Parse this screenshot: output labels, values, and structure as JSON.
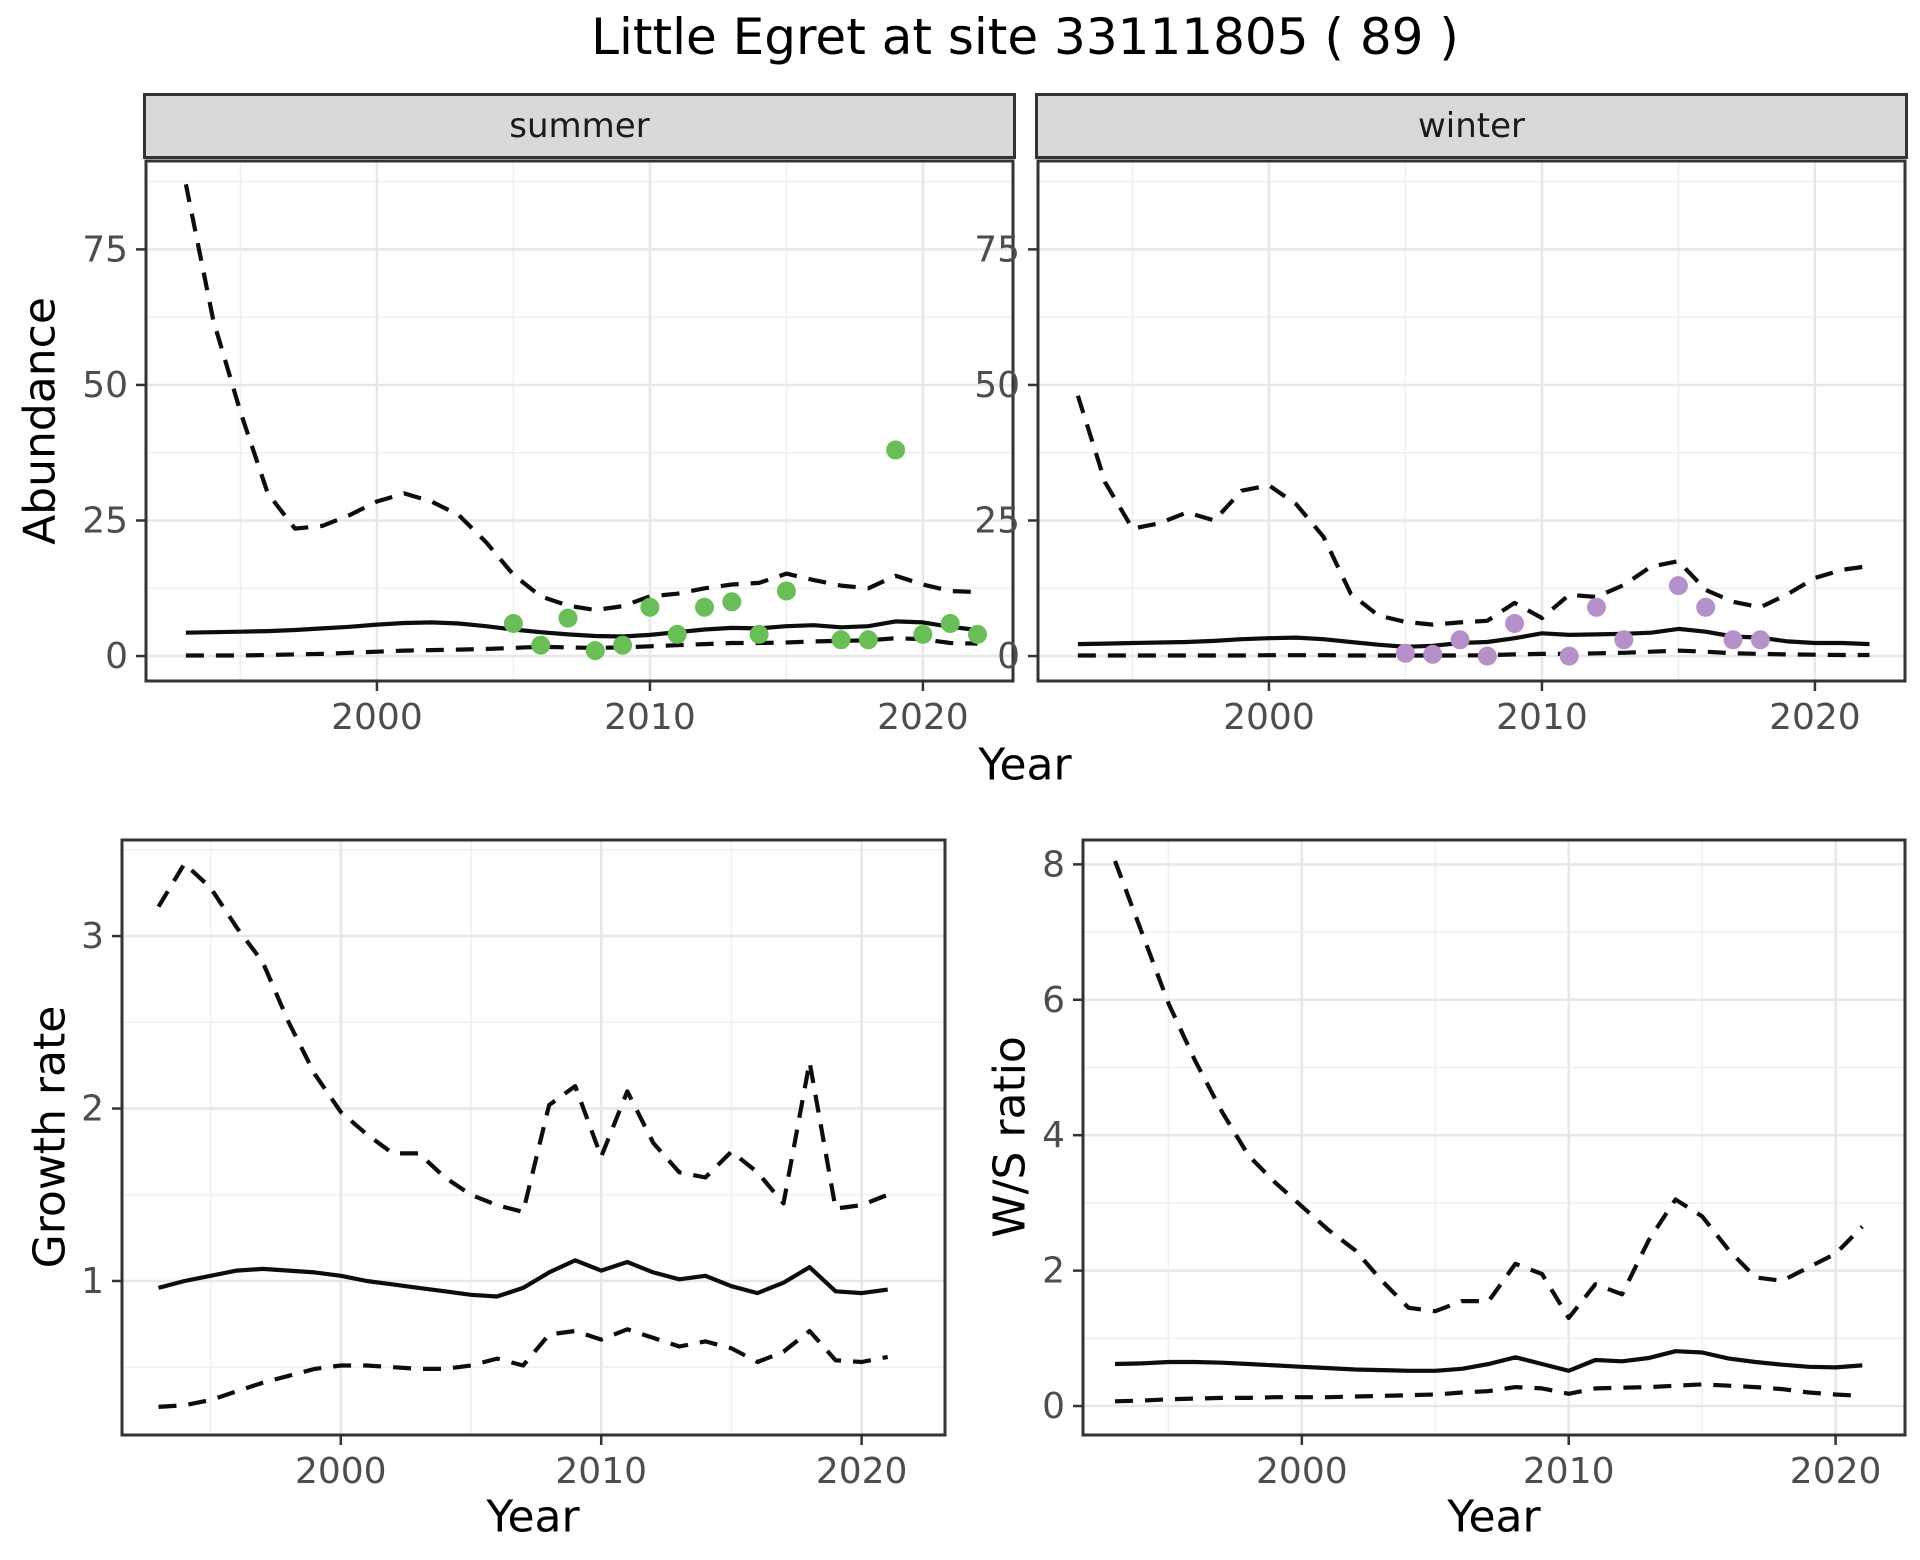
{
  "title": "Little Egret at site 33111805 ( 89 )",
  "facets": [
    "summer",
    "winter"
  ],
  "axis_titles": {
    "abundance": "Abundance",
    "growth_rate": "Growth rate",
    "ws_ratio": "W/S ratio",
    "year": "Year"
  },
  "colors": {
    "summer_point": "#6abe58",
    "winter_point": "#b690c9",
    "line": "#0d0d0d",
    "grid_major": "#e7e7e7",
    "grid_minor": "#f0f0f0",
    "panel_border": "#333333",
    "tick_text": "#4d4d4d",
    "strip_bg": "#d9d9d9"
  },
  "chart_data": [
    {
      "id": "abundance_summer",
      "type": "line",
      "facet": "summer",
      "xlabel": "Year",
      "ylabel": "Abundance",
      "xlim": [
        1991.54,
        2023.3
      ],
      "ylim": [
        -4.6,
        91.3
      ],
      "x_ticks": [
        2000,
        2010,
        2020
      ],
      "y_ticks": [
        0,
        25,
        50,
        75
      ],
      "grid": true,
      "legend": "none",
      "x": [
        1993,
        1994,
        1995,
        1996,
        1997,
        1998,
        1999,
        2000,
        2001,
        2002,
        2003,
        2004,
        2005,
        2006,
        2007,
        2008,
        2009,
        2010,
        2011,
        2012,
        2013,
        2014,
        2015,
        2016,
        2017,
        2018,
        2019,
        2020,
        2021,
        2022
      ],
      "series": [
        {
          "name": "upper_ci",
          "style": "dashed",
          "values": [
            87,
            62,
            45,
            30,
            23.5,
            24,
            26,
            28.5,
            30,
            28.5,
            26,
            21,
            15,
            11,
            9.3,
            8.5,
            9.2,
            11,
            11.5,
            12.5,
            13.2,
            13.5,
            15.2,
            14,
            13,
            12.5,
            14.8,
            13.2,
            12,
            11.8
          ]
        },
        {
          "name": "mean",
          "style": "solid",
          "values": [
            4.3,
            4.4,
            4.5,
            4.6,
            4.8,
            5.1,
            5.4,
            5.8,
            6.1,
            6.2,
            6.0,
            5.5,
            4.9,
            4.4,
            4.0,
            3.7,
            3.6,
            3.9,
            4.4,
            4.9,
            5.2,
            5.1,
            5.5,
            5.7,
            5.3,
            5.5,
            6.4,
            6.2,
            5.4,
            4.8
          ]
        },
        {
          "name": "lower_ci",
          "style": "dashed",
          "values": [
            0.1,
            0.1,
            0.1,
            0.2,
            0.3,
            0.4,
            0.6,
            0.8,
            1.0,
            1.1,
            1.2,
            1.3,
            1.5,
            1.7,
            1.6,
            1.5,
            1.6,
            1.8,
            2.0,
            2.2,
            2.4,
            2.4,
            2.5,
            2.7,
            2.8,
            2.9,
            3.3,
            3.1,
            2.4,
            2.3
          ]
        }
      ],
      "points": {
        "name": "observed_counts",
        "color_key": "summer_point",
        "x": [
          2005,
          2006,
          2007,
          2008,
          2009,
          2010,
          2011,
          2012,
          2013,
          2014,
          2015,
          2017,
          2018,
          2019,
          2020,
          2021,
          2022
        ],
        "y": [
          6,
          2,
          7,
          1,
          2,
          9,
          4,
          9,
          10,
          4,
          12,
          3,
          3,
          38,
          4,
          6,
          4
        ]
      }
    },
    {
      "id": "abundance_winter",
      "type": "line",
      "facet": "winter",
      "xlabel": "Year",
      "ylabel": "Abundance",
      "xlim": [
        1991.54,
        2023.3
      ],
      "ylim": [
        -4.6,
        91.3
      ],
      "x_ticks": [
        2000,
        2010,
        2020
      ],
      "y_ticks": [
        0,
        25,
        50,
        75
      ],
      "grid": true,
      "legend": "none",
      "x": [
        1993,
        1994,
        1995,
        1996,
        1997,
        1998,
        1999,
        2000,
        2001,
        2002,
        2003,
        2004,
        2005,
        2006,
        2007,
        2008,
        2009,
        2010,
        2011,
        2012,
        2013,
        2014,
        2015,
        2016,
        2017,
        2018,
        2019,
        2020,
        2021,
        2022
      ],
      "series": [
        {
          "name": "upper_ci",
          "style": "dashed",
          "values": [
            48,
            32,
            23.5,
            24.5,
            26.5,
            25,
            30.5,
            31.5,
            28,
            22,
            11.5,
            7.5,
            6.3,
            5.8,
            6.2,
            6.5,
            9.8,
            7,
            11.3,
            10.9,
            13.1,
            16.5,
            17.5,
            12.2,
            10,
            9,
            11.4,
            14.4,
            15.9,
            16.6
          ]
        },
        {
          "name": "mean",
          "style": "solid",
          "values": [
            2.2,
            2.3,
            2.4,
            2.5,
            2.6,
            2.8,
            3.1,
            3.3,
            3.4,
            3.1,
            2.6,
            2.1,
            1.7,
            1.9,
            2.4,
            2.6,
            3.3,
            4.2,
            3.9,
            4.0,
            4.1,
            4.3,
            5.0,
            4.5,
            3.6,
            3.4,
            2.7,
            2.4,
            2.4,
            2.2
          ]
        },
        {
          "name": "lower_ci",
          "style": "dashed",
          "values": [
            0.1,
            0.1,
            0.1,
            0.1,
            0.1,
            0.1,
            0.1,
            0.15,
            0.15,
            0.15,
            0.1,
            0.1,
            0.1,
            0.1,
            0.1,
            0.15,
            0.3,
            0.4,
            0.4,
            0.5,
            0.6,
            0.8,
            1.0,
            0.8,
            0.5,
            0.4,
            0.3,
            0.25,
            0.2,
            0.2
          ]
        }
      ],
      "points": {
        "name": "observed_counts",
        "color_key": "winter_point",
        "x": [
          2005,
          2006,
          2007,
          2008,
          2009,
          2011,
          2012,
          2013,
          2015,
          2016,
          2017,
          2018
        ],
        "y": [
          0.5,
          0.3,
          3,
          0,
          6,
          0,
          9,
          3,
          13,
          9,
          3,
          3
        ]
      }
    },
    {
      "id": "growth_rate",
      "type": "line",
      "facet": null,
      "xlabel": "Year",
      "ylabel": "Growth rate",
      "xlim": [
        1991.6,
        2023.2
      ],
      "ylim": [
        0.107,
        3.557
      ],
      "x_ticks": [
        2000,
        2010,
        2020
      ],
      "y_ticks": [
        1,
        2,
        3
      ],
      "grid": true,
      "legend": "none",
      "x": [
        1993,
        1994,
        1995,
        1996,
        1997,
        1998,
        1999,
        2000,
        2001,
        2002,
        2003,
        2004,
        2005,
        2006,
        2007,
        2008,
        2009,
        2010,
        2011,
        2012,
        2013,
        2014,
        2015,
        2016,
        2017,
        2018,
        2019,
        2020,
        2021
      ],
      "series": [
        {
          "name": "upper_ci",
          "style": "dashed",
          "values": [
            3.17,
            3.42,
            3.28,
            3.05,
            2.85,
            2.5,
            2.2,
            1.98,
            1.85,
            1.74,
            1.74,
            1.6,
            1.5,
            1.44,
            1.4,
            2.02,
            2.13,
            1.72,
            2.1,
            1.8,
            1.63,
            1.6,
            1.75,
            1.63,
            1.45,
            2.27,
            1.42,
            1.44,
            1.5
          ]
        },
        {
          "name": "mean",
          "style": "solid",
          "values": [
            0.96,
            1.0,
            1.03,
            1.06,
            1.07,
            1.06,
            1.05,
            1.03,
            1.0,
            0.98,
            0.96,
            0.94,
            0.92,
            0.91,
            0.96,
            1.05,
            1.12,
            1.06,
            1.11,
            1.05,
            1.01,
            1.03,
            0.97,
            0.93,
            0.99,
            1.08,
            0.94,
            0.93,
            0.95
          ]
        },
        {
          "name": "lower_ci",
          "style": "dashed",
          "values": [
            0.27,
            0.28,
            0.31,
            0.36,
            0.41,
            0.45,
            0.49,
            0.51,
            0.51,
            0.5,
            0.49,
            0.49,
            0.51,
            0.55,
            0.51,
            0.69,
            0.71,
            0.66,
            0.72,
            0.67,
            0.62,
            0.65,
            0.61,
            0.53,
            0.59,
            0.71,
            0.54,
            0.53,
            0.56
          ]
        }
      ],
      "points": null
    },
    {
      "id": "ws_ratio",
      "type": "line",
      "facet": null,
      "xlabel": "Year",
      "ylabel": "W/S ratio",
      "xlim": [
        1991.8,
        2022.6
      ],
      "ylim": [
        -0.428,
        8.36
      ],
      "x_ticks": [
        2000,
        2010,
        2020
      ],
      "y_ticks": [
        0,
        2,
        4,
        6,
        8
      ],
      "grid": true,
      "legend": "none",
      "x": [
        1993,
        1994,
        1995,
        1996,
        1997,
        1998,
        1999,
        2000,
        2001,
        2002,
        2003,
        2004,
        2005,
        2006,
        2007,
        2008,
        2009,
        2010,
        2011,
        2012,
        2013,
        2014,
        2015,
        2016,
        2017,
        2018,
        2019,
        2020,
        2021
      ],
      "series": [
        {
          "name": "upper_ci",
          "style": "dashed",
          "values": [
            8.05,
            7.0,
            5.95,
            5.1,
            4.35,
            3.7,
            3.3,
            2.95,
            2.6,
            2.3,
            1.85,
            1.45,
            1.4,
            1.55,
            1.55,
            2.1,
            1.95,
            1.3,
            1.8,
            1.65,
            2.45,
            3.05,
            2.8,
            2.3,
            1.9,
            1.85,
            2.05,
            2.25,
            2.65
          ]
        },
        {
          "name": "mean",
          "style": "solid",
          "values": [
            0.62,
            0.63,
            0.65,
            0.65,
            0.64,
            0.62,
            0.6,
            0.58,
            0.56,
            0.54,
            0.53,
            0.52,
            0.52,
            0.55,
            0.62,
            0.72,
            0.62,
            0.52,
            0.68,
            0.66,
            0.71,
            0.81,
            0.79,
            0.7,
            0.65,
            0.61,
            0.58,
            0.57,
            0.6
          ]
        },
        {
          "name": "lower_ci",
          "style": "dashed",
          "values": [
            0.07,
            0.08,
            0.1,
            0.11,
            0.12,
            0.12,
            0.13,
            0.13,
            0.13,
            0.14,
            0.15,
            0.16,
            0.17,
            0.2,
            0.22,
            0.28,
            0.26,
            0.18,
            0.26,
            0.27,
            0.28,
            0.3,
            0.32,
            0.3,
            0.28,
            0.25,
            0.2,
            0.17,
            0.15
          ]
        }
      ],
      "points": null
    }
  ]
}
